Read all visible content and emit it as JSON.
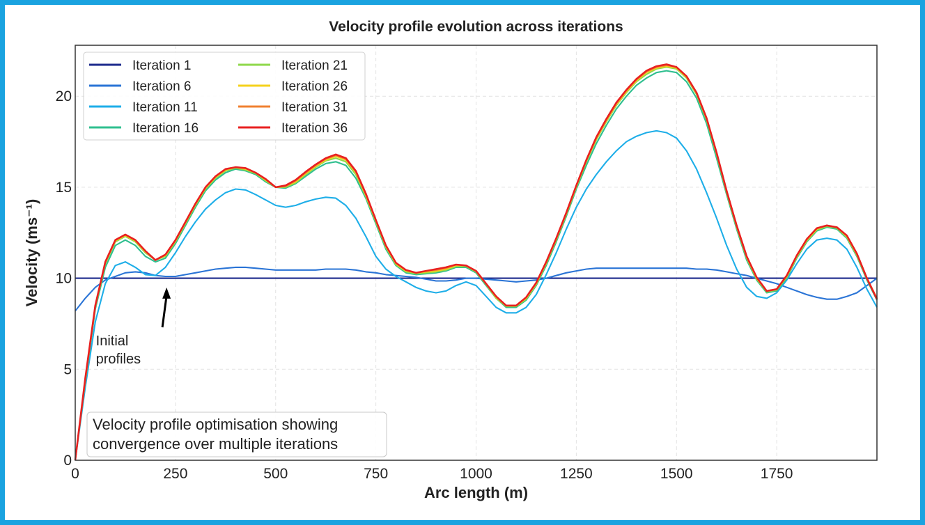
{
  "chart_data": {
    "type": "line",
    "title": "Velocity profile evolution across iterations",
    "xlabel": "Arc length (m)",
    "ylabel": "Velocity (ms⁻¹)",
    "xlim": [
      0,
      2000
    ],
    "ylim": [
      0,
      22.8
    ],
    "x_ticks": [
      0,
      250,
      500,
      750,
      1000,
      1250,
      1500,
      1750
    ],
    "y_ticks": [
      0,
      5,
      10,
      15,
      20
    ],
    "grid": true,
    "legend_position": "top-left",
    "legend_columns": 2,
    "x": [
      0,
      25,
      50,
      75,
      100,
      125,
      150,
      175,
      200,
      225,
      250,
      275,
      300,
      325,
      350,
      375,
      400,
      425,
      450,
      475,
      500,
      525,
      550,
      575,
      600,
      625,
      650,
      675,
      700,
      725,
      750,
      775,
      800,
      825,
      850,
      875,
      900,
      925,
      950,
      975,
      1000,
      1025,
      1050,
      1075,
      1100,
      1125,
      1150,
      1175,
      1200,
      1225,
      1250,
      1275,
      1300,
      1325,
      1350,
      1375,
      1400,
      1425,
      1450,
      1475,
      1500,
      1525,
      1550,
      1575,
      1600,
      1625,
      1650,
      1675,
      1700,
      1725,
      1750,
      1775,
      1800,
      1825,
      1850,
      1875,
      1900,
      1925,
      1950,
      1975,
      2000
    ],
    "series": [
      {
        "name": "Iteration 1",
        "color": "#1c2a8c",
        "values": [
          10.0,
          10.0,
          10.0,
          10.0,
          10.0,
          10.0,
          10.0,
          10.0,
          10.0,
          10.0,
          10.0,
          10.0,
          10.0,
          10.0,
          10.0,
          10.0,
          10.0,
          10.0,
          10.0,
          10.0,
          10.0,
          10.0,
          10.0,
          10.0,
          10.0,
          10.0,
          10.0,
          10.0,
          10.0,
          10.0,
          10.0,
          10.0,
          10.0,
          10.0,
          10.0,
          10.0,
          10.0,
          10.0,
          10.0,
          10.0,
          10.0,
          10.0,
          10.0,
          10.0,
          10.0,
          10.0,
          10.0,
          10.0,
          10.0,
          10.0,
          10.0,
          10.0,
          10.0,
          10.0,
          10.0,
          10.0,
          10.0,
          10.0,
          10.0,
          10.0,
          10.0,
          10.0,
          10.0,
          10.0,
          10.0,
          10.0,
          10.0,
          10.0,
          10.0,
          10.0,
          10.0,
          10.0,
          10.0,
          10.0,
          10.0,
          10.0,
          10.0,
          10.0,
          10.0,
          10.0,
          10.0
        ]
      },
      {
        "name": "Iteration 6",
        "color": "#2a74d6",
        "values": [
          8.2,
          8.9,
          9.5,
          9.9,
          10.1,
          10.3,
          10.35,
          10.3,
          10.15,
          10.1,
          10.1,
          10.2,
          10.3,
          10.4,
          10.5,
          10.55,
          10.6,
          10.6,
          10.55,
          10.5,
          10.45,
          10.45,
          10.45,
          10.45,
          10.45,
          10.5,
          10.5,
          10.5,
          10.45,
          10.35,
          10.3,
          10.2,
          10.15,
          10.1,
          10.05,
          9.95,
          9.85,
          9.85,
          9.9,
          10.0,
          10.0,
          9.95,
          9.9,
          9.85,
          9.8,
          9.85,
          9.9,
          10.0,
          10.15,
          10.3,
          10.4,
          10.5,
          10.55,
          10.55,
          10.55,
          10.55,
          10.55,
          10.55,
          10.55,
          10.55,
          10.55,
          10.55,
          10.5,
          10.5,
          10.45,
          10.35,
          10.25,
          10.15,
          10.0,
          9.85,
          9.7,
          9.5,
          9.3,
          9.1,
          8.95,
          8.85,
          8.85,
          9.0,
          9.2,
          9.6,
          10.0
        ]
      },
      {
        "name": "Iteration 11",
        "color": "#1eaee8",
        "values": [
          0.0,
          4.0,
          7.6,
          9.7,
          10.7,
          10.9,
          10.6,
          10.2,
          10.15,
          10.6,
          11.4,
          12.3,
          13.1,
          13.8,
          14.3,
          14.7,
          14.9,
          14.85,
          14.6,
          14.3,
          14.0,
          13.9,
          14.0,
          14.2,
          14.35,
          14.45,
          14.4,
          14.0,
          13.3,
          12.3,
          11.2,
          10.5,
          10.1,
          9.8,
          9.5,
          9.3,
          9.2,
          9.3,
          9.6,
          9.8,
          9.6,
          9.0,
          8.4,
          8.1,
          8.1,
          8.4,
          9.1,
          10.2,
          11.4,
          12.7,
          13.9,
          14.9,
          15.7,
          16.4,
          17.0,
          17.5,
          17.8,
          18.0,
          18.1,
          18.0,
          17.7,
          17.0,
          16.0,
          14.7,
          13.3,
          11.8,
          10.5,
          9.5,
          9.0,
          8.9,
          9.2,
          9.9,
          10.8,
          11.6,
          12.1,
          12.2,
          12.1,
          11.6,
          10.6,
          9.4,
          8.4
        ]
      },
      {
        "name": "Iteration 16",
        "color": "#2fbf8f",
        "values": [
          0.0,
          4.3,
          8.3,
          10.6,
          11.8,
          12.1,
          11.8,
          11.2,
          10.9,
          11.1,
          11.9,
          12.9,
          13.9,
          14.8,
          15.4,
          15.8,
          16.0,
          15.9,
          15.7,
          15.3,
          15.0,
          14.95,
          15.2,
          15.6,
          16.0,
          16.3,
          16.4,
          16.2,
          15.5,
          14.4,
          13.0,
          11.6,
          10.7,
          10.3,
          10.2,
          10.25,
          10.3,
          10.4,
          10.6,
          10.6,
          10.3,
          9.6,
          8.9,
          8.4,
          8.4,
          8.8,
          9.6,
          10.7,
          12.0,
          13.4,
          14.9,
          16.2,
          17.4,
          18.4,
          19.3,
          20.0,
          20.6,
          21.0,
          21.3,
          21.4,
          21.3,
          20.8,
          19.9,
          18.5,
          16.6,
          14.6,
          12.7,
          11.0,
          9.9,
          9.2,
          9.3,
          10.0,
          11.1,
          12.0,
          12.6,
          12.8,
          12.7,
          12.2,
          11.2,
          9.9,
          8.8
        ]
      },
      {
        "name": "Iteration 21",
        "color": "#8ed84a",
        "values": [
          0.0,
          4.4,
          8.4,
          10.8,
          12.0,
          12.3,
          12.0,
          11.4,
          11.0,
          11.2,
          12.0,
          13.0,
          14.0,
          14.9,
          15.5,
          15.9,
          16.05,
          15.95,
          15.75,
          15.35,
          15.0,
          15.0,
          15.25,
          15.7,
          16.1,
          16.45,
          16.6,
          16.4,
          15.7,
          14.5,
          13.1,
          11.7,
          10.75,
          10.35,
          10.25,
          10.3,
          10.35,
          10.45,
          10.65,
          10.65,
          10.35,
          9.65,
          8.9,
          8.45,
          8.45,
          8.85,
          9.65,
          10.8,
          12.1,
          13.5,
          15.0,
          16.4,
          17.6,
          18.6,
          19.5,
          20.2,
          20.8,
          21.2,
          21.5,
          21.6,
          21.5,
          21.0,
          20.1,
          18.7,
          16.8,
          14.7,
          12.8,
          11.1,
          9.95,
          9.25,
          9.35,
          10.05,
          11.15,
          12.05,
          12.65,
          12.85,
          12.75,
          12.25,
          11.25,
          9.95,
          8.85
        ]
      },
      {
        "name": "Iteration 26",
        "color": "#f5d21c",
        "values": [
          0.0,
          4.4,
          8.45,
          10.85,
          12.05,
          12.35,
          12.05,
          11.45,
          11.0,
          11.25,
          12.05,
          13.05,
          14.05,
          14.95,
          15.55,
          15.95,
          16.1,
          16.0,
          15.8,
          15.4,
          15.0,
          15.05,
          15.3,
          15.75,
          16.15,
          16.5,
          16.7,
          16.5,
          15.8,
          14.55,
          13.15,
          11.75,
          10.8,
          10.4,
          10.3,
          10.35,
          10.4,
          10.5,
          10.7,
          10.7,
          10.4,
          9.7,
          8.95,
          8.5,
          8.5,
          8.9,
          9.7,
          10.85,
          12.15,
          13.55,
          15.05,
          16.45,
          17.65,
          18.65,
          19.55,
          20.25,
          20.85,
          21.3,
          21.55,
          21.65,
          21.55,
          21.05,
          20.15,
          18.75,
          16.85,
          14.75,
          12.85,
          11.15,
          10.0,
          9.3,
          9.4,
          10.1,
          11.2,
          12.1,
          12.7,
          12.9,
          12.8,
          12.3,
          11.3,
          10.0,
          8.9
        ]
      },
      {
        "name": "Iteration 31",
        "color": "#f08030",
        "values": [
          0.0,
          4.45,
          8.5,
          10.9,
          12.1,
          12.4,
          12.1,
          11.5,
          11.0,
          11.3,
          12.1,
          13.1,
          14.1,
          15.0,
          15.6,
          16.0,
          16.1,
          16.05,
          15.8,
          15.45,
          15.0,
          15.05,
          15.35,
          15.8,
          16.2,
          16.55,
          16.75,
          16.55,
          15.85,
          14.6,
          13.2,
          11.8,
          10.85,
          10.45,
          10.3,
          10.4,
          10.45,
          10.55,
          10.75,
          10.7,
          10.4,
          9.7,
          9.0,
          8.5,
          8.5,
          8.95,
          9.75,
          10.9,
          12.2,
          13.6,
          15.1,
          16.5,
          17.7,
          18.7,
          19.6,
          20.3,
          20.9,
          21.35,
          21.6,
          21.7,
          21.6,
          21.1,
          20.2,
          18.8,
          16.9,
          14.8,
          12.9,
          11.2,
          10.05,
          9.3,
          9.4,
          10.15,
          11.25,
          12.15,
          12.75,
          12.9,
          12.8,
          12.35,
          11.35,
          10.0,
          8.9
        ]
      },
      {
        "name": "Iteration 36",
        "color": "#e82020",
        "values": [
          0.0,
          4.5,
          8.5,
          10.9,
          12.1,
          12.4,
          12.1,
          11.5,
          11.0,
          11.3,
          12.1,
          13.1,
          14.1,
          15.0,
          15.6,
          16.0,
          16.1,
          16.05,
          15.8,
          15.45,
          15.0,
          15.1,
          15.4,
          15.85,
          16.25,
          16.6,
          16.8,
          16.6,
          15.9,
          14.65,
          13.2,
          11.8,
          10.85,
          10.45,
          10.3,
          10.4,
          10.5,
          10.6,
          10.75,
          10.7,
          10.4,
          9.7,
          9.0,
          8.5,
          8.5,
          8.95,
          9.75,
          10.9,
          12.2,
          13.6,
          15.1,
          16.5,
          17.75,
          18.75,
          19.65,
          20.35,
          20.95,
          21.4,
          21.65,
          21.75,
          21.6,
          21.1,
          20.2,
          18.8,
          16.9,
          14.8,
          12.9,
          11.2,
          10.05,
          9.3,
          9.4,
          10.15,
          11.25,
          12.15,
          12.75,
          12.9,
          12.8,
          12.35,
          11.35,
          10.0,
          8.85
        ]
      }
    ],
    "annotation": {
      "lines": [
        "Initial",
        "profiles"
      ],
      "points_to": {
        "x": 200,
        "y": 9.8
      },
      "text_at": {
        "x": 55,
        "y": 7.0
      }
    },
    "note": {
      "lines": [
        "Velocity profile optimisation showing",
        "convergence over multiple iterations"
      ],
      "position": "bottom-left"
    }
  }
}
